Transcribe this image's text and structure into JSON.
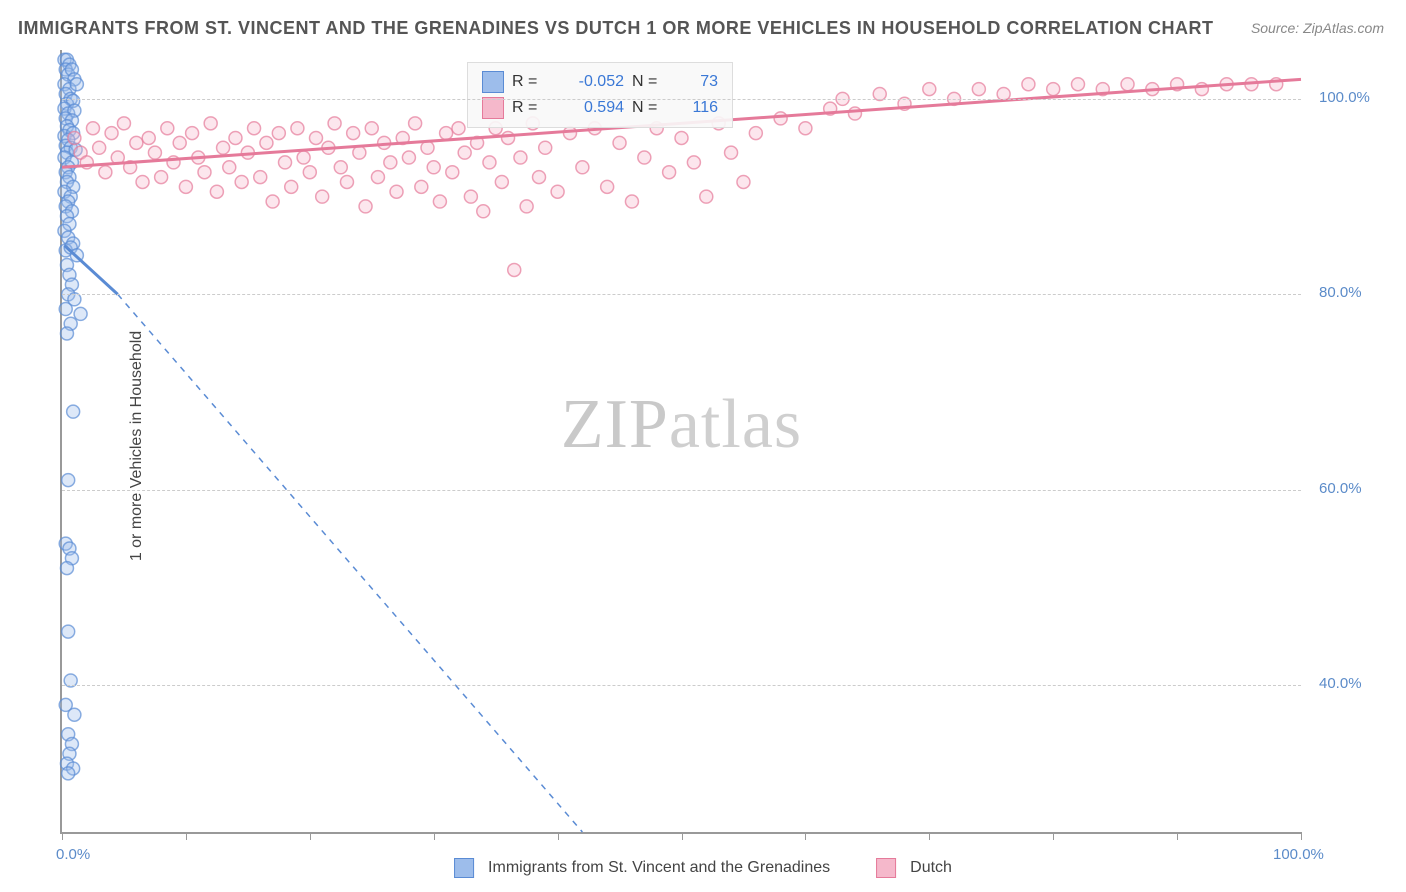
{
  "title": "IMMIGRANTS FROM ST. VINCENT AND THE GRENADINES VS DUTCH 1 OR MORE VEHICLES IN HOUSEHOLD CORRELATION CHART",
  "source": "Source: ZipAtlas.com",
  "y_axis_title": "1 or more Vehicles in Household",
  "watermark": "ZIPatlas",
  "axes": {
    "xlim": [
      0,
      100
    ],
    "ylim": [
      25,
      105
    ],
    "x_ticks": [
      0,
      10,
      20,
      30,
      40,
      50,
      60,
      70,
      80,
      90,
      100
    ],
    "x_tick_labels": {
      "0": "0.0%",
      "100": "100.0%"
    },
    "y_ticks": [
      40,
      60,
      80,
      100
    ],
    "y_tick_labels": {
      "40": "40.0%",
      "60": "60.0%",
      "80": "80.0%",
      "100": "100.0%"
    },
    "grid_color": "#cccccc",
    "axis_color": "#999999",
    "tick_label_color": "#5b8bc9",
    "tick_label_fontsize": 15
  },
  "series": [
    {
      "id": "svg_series",
      "label": "Immigrants from St. Vincent and the Grenadines",
      "color_fill": "#9dbdeb",
      "color_stroke": "#5a8bd4",
      "marker_radius": 6.5,
      "R": "-0.052",
      "N": "73",
      "trend": {
        "solid": {
          "x1": 0.2,
          "y1": 85,
          "x2": 4.5,
          "y2": 80
        },
        "dashed": {
          "x1": 4.5,
          "y1": 80,
          "x2": 42,
          "y2": 25
        }
      },
      "points": [
        [
          0.2,
          104
        ],
        [
          0.4,
          104
        ],
        [
          0.6,
          103.5
        ],
        [
          0.3,
          103
        ],
        [
          0.5,
          102.5
        ],
        [
          0.8,
          103
        ],
        [
          1.0,
          102
        ],
        [
          0.2,
          101.5
        ],
        [
          0.6,
          101
        ],
        [
          1.2,
          101.5
        ],
        [
          0.3,
          100.5
        ],
        [
          0.7,
          100
        ],
        [
          0.4,
          99.5
        ],
        [
          0.9,
          99.8
        ],
        [
          0.2,
          99
        ],
        [
          0.5,
          98.5
        ],
        [
          1.0,
          98.8
        ],
        [
          0.3,
          98
        ],
        [
          0.8,
          97.8
        ],
        [
          0.4,
          97.2
        ],
        [
          0.6,
          96.8
        ],
        [
          0.2,
          96.2
        ],
        [
          0.9,
          96.5
        ],
        [
          0.5,
          95.8
        ],
        [
          0.3,
          95.2
        ],
        [
          0.7,
          95
        ],
        [
          0.4,
          94.5
        ],
        [
          1.1,
          94.8
        ],
        [
          0.2,
          94
        ],
        [
          0.8,
          93.5
        ],
        [
          0.5,
          93
        ],
        [
          0.3,
          92.5
        ],
        [
          0.6,
          92
        ],
        [
          0.4,
          91.5
        ],
        [
          0.9,
          91
        ],
        [
          0.2,
          90.5
        ],
        [
          0.7,
          90
        ],
        [
          0.5,
          89.5
        ],
        [
          0.3,
          89
        ],
        [
          0.8,
          88.5
        ],
        [
          0.4,
          88
        ],
        [
          0.6,
          87.2
        ],
        [
          0.2,
          86.5
        ],
        [
          0.5,
          85.8
        ],
        [
          0.9,
          85.2
        ],
        [
          0.3,
          84.5
        ],
        [
          0.7,
          84.8
        ],
        [
          1.2,
          84
        ],
        [
          0.4,
          83
        ],
        [
          0.6,
          82
        ],
        [
          0.8,
          81
        ],
        [
          0.5,
          80
        ],
        [
          1.0,
          79.5
        ],
        [
          0.3,
          78.5
        ],
        [
          1.5,
          78
        ],
        [
          0.7,
          77
        ],
        [
          0.4,
          76
        ],
        [
          0.9,
          68
        ],
        [
          0.5,
          61
        ],
        [
          0.3,
          54.5
        ],
        [
          0.6,
          54
        ],
        [
          0.8,
          53
        ],
        [
          0.4,
          52
        ],
        [
          0.5,
          45.5
        ],
        [
          0.7,
          40.5
        ],
        [
          0.3,
          38
        ],
        [
          1.0,
          37
        ],
        [
          0.5,
          35
        ],
        [
          0.8,
          34
        ],
        [
          0.6,
          33
        ],
        [
          0.4,
          32
        ],
        [
          0.9,
          31.5
        ],
        [
          0.5,
          31
        ]
      ]
    },
    {
      "id": "dutch_series",
      "label": "Dutch",
      "color_fill": "#f5b8cb",
      "color_stroke": "#e57a9a",
      "marker_radius": 6.5,
      "R": "0.594",
      "N": "116",
      "trend": {
        "solid": {
          "x1": 0,
          "y1": 93,
          "x2": 100,
          "y2": 102
        }
      },
      "points": [
        [
          1,
          96
        ],
        [
          1.5,
          94.5
        ],
        [
          2,
          93.5
        ],
        [
          2.5,
          97
        ],
        [
          3,
          95
        ],
        [
          3.5,
          92.5
        ],
        [
          4,
          96.5
        ],
        [
          4.5,
          94
        ],
        [
          5,
          97.5
        ],
        [
          5.5,
          93
        ],
        [
          6,
          95.5
        ],
        [
          6.5,
          91.5
        ],
        [
          7,
          96
        ],
        [
          7.5,
          94.5
        ],
        [
          8,
          92
        ],
        [
          8.5,
          97
        ],
        [
          9,
          93.5
        ],
        [
          9.5,
          95.5
        ],
        [
          10,
          91
        ],
        [
          10.5,
          96.5
        ],
        [
          11,
          94
        ],
        [
          11.5,
          92.5
        ],
        [
          12,
          97.5
        ],
        [
          12.5,
          90.5
        ],
        [
          13,
          95
        ],
        [
          13.5,
          93
        ],
        [
          14,
          96
        ],
        [
          14.5,
          91.5
        ],
        [
          15,
          94.5
        ],
        [
          15.5,
          97
        ],
        [
          16,
          92
        ],
        [
          16.5,
          95.5
        ],
        [
          17,
          89.5
        ],
        [
          17.5,
          96.5
        ],
        [
          18,
          93.5
        ],
        [
          18.5,
          91
        ],
        [
          19,
          97
        ],
        [
          19.5,
          94
        ],
        [
          20,
          92.5
        ],
        [
          20.5,
          96
        ],
        [
          21,
          90
        ],
        [
          21.5,
          95
        ],
        [
          22,
          97.5
        ],
        [
          22.5,
          93
        ],
        [
          23,
          91.5
        ],
        [
          23.5,
          96.5
        ],
        [
          24,
          94.5
        ],
        [
          24.5,
          89
        ],
        [
          25,
          97
        ],
        [
          25.5,
          92
        ],
        [
          26,
          95.5
        ],
        [
          26.5,
          93.5
        ],
        [
          27,
          90.5
        ],
        [
          27.5,
          96
        ],
        [
          28,
          94
        ],
        [
          28.5,
          97.5
        ],
        [
          29,
          91
        ],
        [
          29.5,
          95
        ],
        [
          30,
          93
        ],
        [
          30.5,
          89.5
        ],
        [
          31,
          96.5
        ],
        [
          31.5,
          92.5
        ],
        [
          32,
          97
        ],
        [
          32.5,
          94.5
        ],
        [
          33,
          90
        ],
        [
          33.5,
          95.5
        ],
        [
          34,
          88.5
        ],
        [
          34.5,
          93.5
        ],
        [
          35,
          97
        ],
        [
          35.5,
          91.5
        ],
        [
          36,
          96
        ],
        [
          36.5,
          82.5
        ],
        [
          37,
          94
        ],
        [
          37.5,
          89
        ],
        [
          38,
          97.5
        ],
        [
          38.5,
          92
        ],
        [
          39,
          95
        ],
        [
          40,
          90.5
        ],
        [
          41,
          96.5
        ],
        [
          42,
          93
        ],
        [
          43,
          97
        ],
        [
          44,
          91
        ],
        [
          45,
          95.5
        ],
        [
          46,
          89.5
        ],
        [
          47,
          94
        ],
        [
          48,
          97
        ],
        [
          49,
          92.5
        ],
        [
          50,
          96
        ],
        [
          51,
          93.5
        ],
        [
          52,
          90
        ],
        [
          53,
          97.5
        ],
        [
          54,
          94.5
        ],
        [
          55,
          91.5
        ],
        [
          56,
          96.5
        ],
        [
          58,
          98
        ],
        [
          60,
          97
        ],
        [
          62,
          99
        ],
        [
          63,
          100
        ],
        [
          64,
          98.5
        ],
        [
          66,
          100.5
        ],
        [
          68,
          99.5
        ],
        [
          70,
          101
        ],
        [
          72,
          100
        ],
        [
          74,
          101
        ],
        [
          76,
          100.5
        ],
        [
          78,
          101.5
        ],
        [
          80,
          101
        ],
        [
          82,
          101.5
        ],
        [
          84,
          101
        ],
        [
          86,
          101.5
        ],
        [
          88,
          101
        ],
        [
          90,
          101.5
        ],
        [
          92,
          101
        ],
        [
          94,
          101.5
        ],
        [
          96,
          101.5
        ],
        [
          98,
          101.5
        ]
      ]
    }
  ],
  "stats_legend": {
    "r_label": "R =",
    "n_label": "N ="
  },
  "bottom_legend": {
    "series1_label": "Immigrants from St. Vincent and the Grenadines",
    "series2_label": "Dutch"
  }
}
